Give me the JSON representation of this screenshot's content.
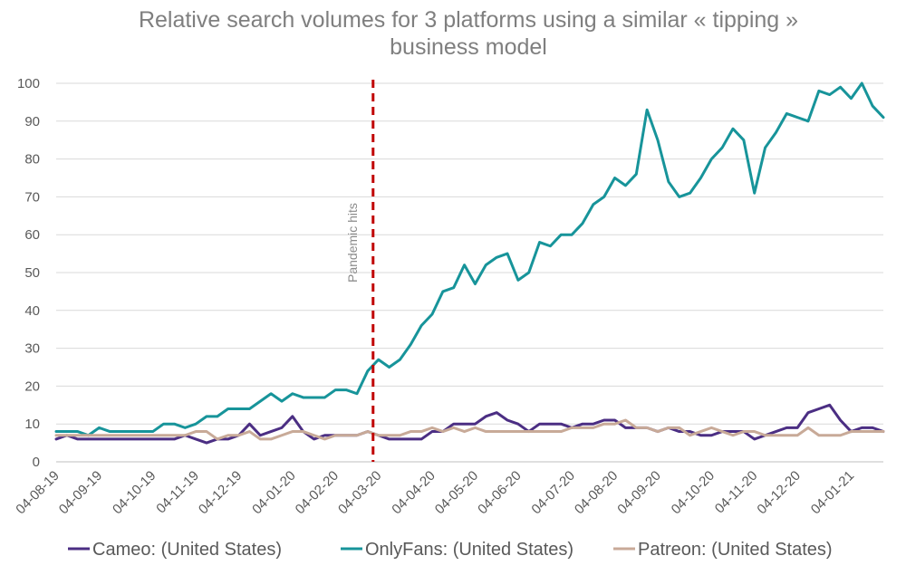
{
  "chart_data": {
    "type": "line",
    "title_lines": [
      "Relative search volumes for 3 platforms using a similar « tipping »",
      "business model"
    ],
    "xlabel": "",
    "ylabel": "",
    "ylim": [
      0,
      100
    ],
    "yticks": [
      0,
      10,
      20,
      30,
      40,
      50,
      60,
      70,
      80,
      90,
      100
    ],
    "gridlines": true,
    "legend_position": "bottom",
    "x_tick_labels": [
      {
        "index": 0,
        "label": "04-08-19"
      },
      {
        "index": 4,
        "label": "04-09-19"
      },
      {
        "index": 9,
        "label": "04-10-19"
      },
      {
        "index": 13,
        "label": "04-11-19"
      },
      {
        "index": 17,
        "label": "04-12-19"
      },
      {
        "index": 22,
        "label": "04-01-20"
      },
      {
        "index": 26,
        "label": "04-02-20"
      },
      {
        "index": 30,
        "label": "04-03-20"
      },
      {
        "index": 35,
        "label": "04-04-20"
      },
      {
        "index": 39,
        "label": "04-05-20"
      },
      {
        "index": 43,
        "label": "04-06-20"
      },
      {
        "index": 48,
        "label": "04-07-20"
      },
      {
        "index": 52,
        "label": "04-08-20"
      },
      {
        "index": 56,
        "label": "04-09-20"
      },
      {
        "index": 61,
        "label": "04-10-20"
      },
      {
        "index": 65,
        "label": "04-11-20"
      },
      {
        "index": 69,
        "label": "04-12-20"
      },
      {
        "index": 74,
        "label": "04-01-21"
      }
    ],
    "annotation": {
      "label": "Pandemic hits",
      "x_index": 29.5,
      "color": "#c00000"
    },
    "series": [
      {
        "name": "Cameo: (United States)",
        "color": "#4b2e83",
        "values": [
          6,
          7,
          6,
          6,
          6,
          6,
          6,
          6,
          6,
          6,
          6,
          6,
          7,
          6,
          5,
          6,
          6,
          7,
          10,
          7,
          8,
          9,
          12,
          8,
          6,
          7,
          7,
          7,
          7,
          8,
          7,
          6,
          6,
          6,
          6,
          8,
          8,
          10,
          10,
          10,
          12,
          13,
          11,
          10,
          8,
          10,
          10,
          10,
          9,
          10,
          10,
          11,
          11,
          9,
          9,
          9,
          8,
          9,
          8,
          8,
          7,
          7,
          8,
          8,
          8,
          6,
          7,
          8,
          9,
          9,
          13,
          14,
          15,
          11,
          8,
          9,
          9,
          8
        ]
      },
      {
        "name": "OnlyFans: (United States)",
        "color": "#17949a",
        "values": [
          8,
          8,
          8,
          7,
          9,
          8,
          8,
          8,
          8,
          8,
          10,
          10,
          9,
          10,
          12,
          12,
          14,
          14,
          14,
          16,
          18,
          16,
          18,
          17,
          17,
          17,
          19,
          19,
          18,
          24,
          27,
          25,
          27,
          31,
          36,
          39,
          45,
          46,
          52,
          47,
          52,
          54,
          55,
          48,
          50,
          58,
          57,
          60,
          60,
          63,
          68,
          70,
          75,
          73,
          76,
          93,
          85,
          74,
          70,
          71,
          75,
          80,
          83,
          88,
          85,
          71,
          83,
          87,
          92,
          91,
          90,
          98,
          97,
          99,
          96,
          100,
          94,
          91
        ]
      },
      {
        "name": "Patreon: (United States)",
        "color": "#c8aa98",
        "values": [
          7,
          7,
          7,
          7,
          7,
          7,
          7,
          7,
          7,
          7,
          7,
          7,
          7,
          8,
          8,
          6,
          7,
          7,
          8,
          6,
          6,
          7,
          8,
          8,
          7,
          6,
          7,
          7,
          7,
          8,
          7,
          7,
          7,
          8,
          8,
          9,
          8,
          9,
          8,
          9,
          8,
          8,
          8,
          8,
          8,
          8,
          8,
          8,
          9,
          9,
          9,
          10,
          10,
          11,
          9,
          9,
          8,
          9,
          9,
          7,
          8,
          9,
          8,
          7,
          8,
          8,
          7,
          7,
          7,
          7,
          9,
          7,
          7,
          7,
          8,
          8,
          8,
          8
        ]
      }
    ]
  }
}
